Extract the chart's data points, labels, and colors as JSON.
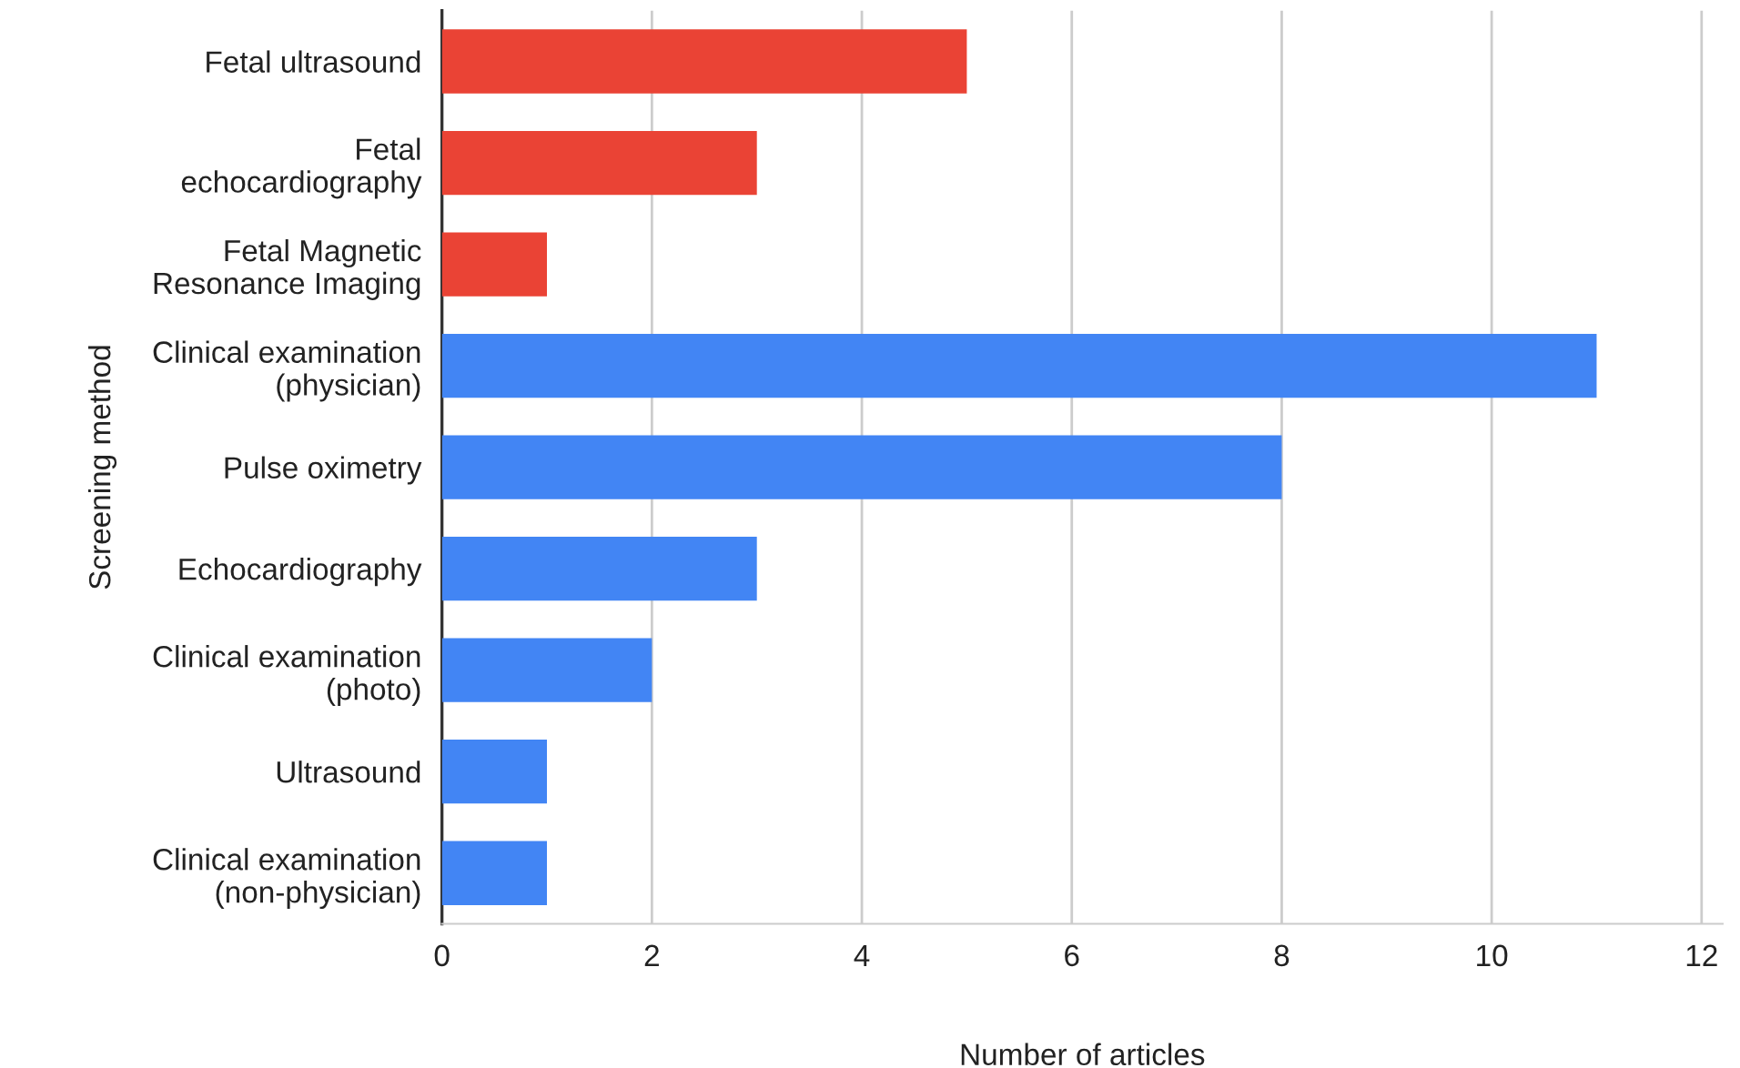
{
  "chart_data": {
    "type": "bar",
    "orientation": "horizontal",
    "xlabel": "Number of articles",
    "ylabel": "Screening method",
    "categories": [
      "Fetal ultrasound",
      "Fetal\nechocardiography",
      "Fetal Magnetic\nResonance Imaging",
      "Clinical examination\n(physician)",
      "Pulse oximetry",
      "Echocardiography",
      "Clinical examination\n(photo)",
      "Ultrasound",
      "Clinical examination\n(non-physician)"
    ],
    "values": [
      5,
      3,
      1,
      11,
      8,
      3,
      2,
      1,
      1
    ],
    "colors": [
      "#ea4335",
      "#ea4335",
      "#ea4335",
      "#4285f4",
      "#4285f4",
      "#4285f4",
      "#4285f4",
      "#4285f4",
      "#4285f4"
    ],
    "xlim": [
      0,
      12.2
    ],
    "xticks": [
      0,
      2,
      4,
      6,
      8,
      10,
      12
    ],
    "grid": "x",
    "legend": false
  }
}
